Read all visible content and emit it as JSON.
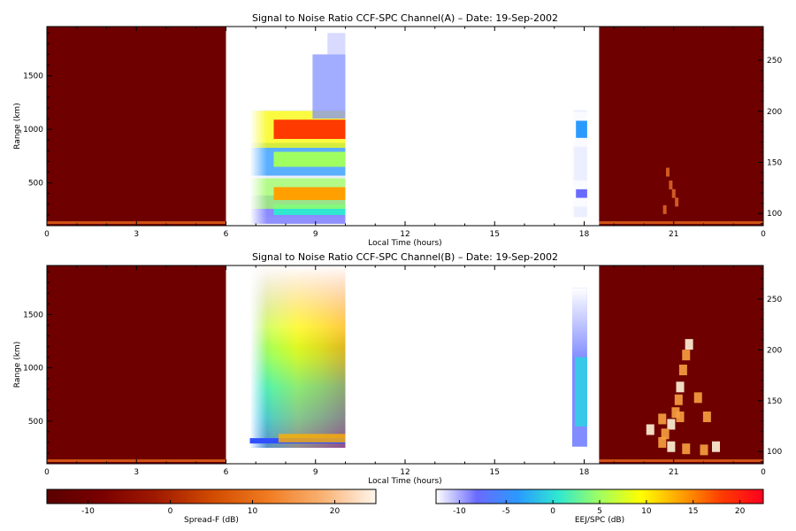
{
  "chart_data": [
    {
      "type": "heatmap",
      "title": "Signal to Noise Ratio CCF-SPC Channel(A) – Date: 19-Sep-2002",
      "xlabel": "Local Time (hours)",
      "ylabel": "Range (km)",
      "x_tick_labels": [
        "0",
        "3",
        "6",
        "9",
        "12",
        "15",
        "18",
        "21",
        "0"
      ],
      "y_tick_labels": [
        "500",
        "1000",
        "1500"
      ],
      "y_ticks": [
        500,
        1000,
        1500
      ],
      "y2_tick_labels": [
        "100",
        "150",
        "200",
        "250"
      ],
      "y2_ticks": [
        100,
        150,
        200,
        250
      ],
      "xlim": [
        0,
        24
      ],
      "ylim": [
        100,
        1960
      ],
      "y2lim": [
        88,
        283
      ],
      "regions": [
        {
          "colormap": "spread_f",
          "x_range": [
            0,
            6
          ],
          "y_range": [
            100,
            1960
          ],
          "level_db": -12
        },
        {
          "colormap": "eej",
          "x_range": [
            6.8,
            10
          ],
          "features": [
            {
              "center_km": 1000,
              "width_km": 90,
              "peak_db": 18
            },
            {
              "center_km": 400,
              "width_km": 60,
              "peak_db": 14
            },
            {
              "center_km": 720,
              "width_km": 70,
              "peak_db": 6
            },
            {
              "center_km": 250,
              "width_km": 50,
              "peak_db": 2
            }
          ]
        },
        {
          "colormap": "eej",
          "x_range": [
            17.6,
            18.1
          ],
          "features": [
            {
              "center_km": 1000,
              "width_km": 80,
              "peak_db": -4
            },
            {
              "center_km": 400,
              "width_km": 40,
              "peak_db": -6
            }
          ]
        },
        {
          "colormap": "spread_f",
          "x_range": [
            18.5,
            24
          ],
          "y_range": [
            100,
            1960
          ],
          "level_db": -12
        }
      ]
    },
    {
      "type": "heatmap",
      "title": "Signal to Noise Ratio CCF-SPC Channel(B) – Date: 19-Sep-2002",
      "xlabel": "Local Time (hours)",
      "ylabel": "Range (km)",
      "x_tick_labels": [
        "0",
        "3",
        "6",
        "9",
        "12",
        "15",
        "18",
        "21",
        "0"
      ],
      "y_tick_labels": [
        "500",
        "1000",
        "1500"
      ],
      "y_ticks": [
        500,
        1000,
        1500
      ],
      "y2_tick_labels": [
        "100",
        "150",
        "200",
        "250"
      ],
      "y2_ticks": [
        100,
        150,
        200,
        250
      ],
      "xlim": [
        0,
        24
      ],
      "ylim": [
        100,
        1960
      ],
      "y2lim": [
        88,
        283
      ],
      "regions": [
        {
          "colormap": "spread_f",
          "x_range": [
            0,
            6
          ],
          "y_range": [
            100,
            1960
          ],
          "level_db": -12
        },
        {
          "colormap": "eej",
          "x_range": [
            6.8,
            10
          ],
          "peak_db": 14
        },
        {
          "colormap": "eej",
          "x_range": [
            17.6,
            18.1
          ],
          "peak_db": 0
        },
        {
          "colormap": "spread_f",
          "x_range": [
            18.5,
            24
          ],
          "y_range": [
            100,
            1960
          ],
          "level_db": -12,
          "echo_peak_db": 22
        }
      ]
    }
  ],
  "colorbars": [
    {
      "label": "Spread-F (dB)",
      "colormap": "spread_f",
      "range": [
        -15,
        25
      ],
      "tick_labels": [
        "-10",
        "0",
        "10",
        "20"
      ],
      "ticks": [
        -10,
        0,
        10,
        20
      ]
    },
    {
      "label": "EEJ/SPC (dB)",
      "colormap": "eej",
      "range": [
        -12.5,
        22.5
      ],
      "tick_labels": [
        "-10",
        "-5",
        "0",
        "5",
        "10",
        "15",
        "20"
      ],
      "ticks": [
        -10,
        -5,
        0,
        5,
        10,
        15,
        20
      ]
    }
  ],
  "colors": {
    "spread_f": [
      "#5a0000",
      "#7a0000",
      "#a01a00",
      "#d04a00",
      "#f07a20",
      "#f8b070",
      "#fff6ec"
    ],
    "eej": [
      "#ffffff",
      "#6a6aff",
      "#2a9aff",
      "#30e8d0",
      "#a0ff60",
      "#ffff00",
      "#ffa000",
      "#ff3a00",
      "#ff0020"
    ]
  }
}
